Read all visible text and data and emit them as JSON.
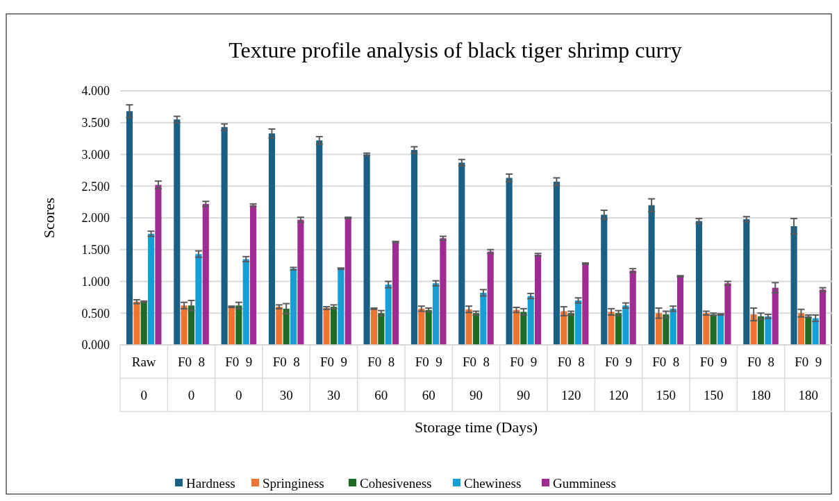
{
  "chart_data": {
    "type": "bar",
    "title": "Texture profile analysis of black tiger shrimp curry",
    "xlabel": "Storage time (Days)",
    "ylabel": "Scores",
    "categories": [
      "Raw\n0",
      "F0  8\n0",
      "F0  9\n0",
      "F0  8\n30",
      "F0  9\n30",
      "F0  8\n60",
      "F0  9\n60",
      "F0  8\n90",
      "F0  9\n90",
      "F0  8\n120",
      "F0  9\n120",
      "F0  8\n150",
      "F0  9\n150",
      "F0  8\n180",
      "F0  9\n180"
    ],
    "series": [
      {
        "name": "Hardness",
        "color": "#1a5f84",
        "values": [
          3.68,
          3.55,
          3.43,
          3.33,
          3.22,
          3.0,
          3.07,
          2.87,
          2.63,
          2.57,
          2.05,
          2.2,
          1.95,
          1.98,
          1.87
        ],
        "errors": [
          0.1,
          0.05,
          0.05,
          0.07,
          0.06,
          0.02,
          0.05,
          0.05,
          0.06,
          0.06,
          0.07,
          0.1,
          0.04,
          0.04,
          0.12
        ]
      },
      {
        "name": "Springiness",
        "color": "#ed7531",
        "values": [
          0.68,
          0.62,
          0.6,
          0.6,
          0.58,
          0.57,
          0.57,
          0.56,
          0.55,
          0.53,
          0.52,
          0.5,
          0.5,
          0.48,
          0.5
        ],
        "errors": [
          0.03,
          0.05,
          0.01,
          0.03,
          0.02,
          0.01,
          0.04,
          0.05,
          0.04,
          0.07,
          0.05,
          0.08,
          0.03,
          0.1,
          0.06
        ]
      },
      {
        "name": "Cohesiveness",
        "color": "#1d6b25",
        "values": [
          0.68,
          0.62,
          0.62,
          0.57,
          0.6,
          0.5,
          0.55,
          0.5,
          0.52,
          0.5,
          0.5,
          0.48,
          0.48,
          0.45,
          0.45
        ],
        "errors": [
          0.01,
          0.08,
          0.05,
          0.08,
          0.03,
          0.04,
          0.03,
          0.03,
          0.05,
          0.03,
          0.04,
          0.05,
          0.02,
          0.05,
          0.02
        ]
      },
      {
        "name": "Chewiness",
        "color": "#159fd6",
        "values": [
          1.75,
          1.43,
          1.35,
          1.2,
          1.2,
          0.95,
          0.97,
          0.82,
          0.77,
          0.7,
          0.62,
          0.57,
          0.48,
          0.45,
          0.42
        ],
        "errors": [
          0.04,
          0.05,
          0.04,
          0.02,
          0.01,
          0.05,
          0.04,
          0.05,
          0.04,
          0.04,
          0.04,
          0.04,
          0.01,
          0.03,
          0.05
        ]
      },
      {
        "name": "Gumminess",
        "color": "#a02c93",
        "values": [
          2.52,
          2.22,
          2.2,
          1.97,
          2.0,
          1.62,
          1.68,
          1.47,
          1.42,
          1.28,
          1.17,
          1.08,
          0.97,
          0.9,
          0.87
        ],
        "errors": [
          0.06,
          0.04,
          0.02,
          0.04,
          0.01,
          0.01,
          0.03,
          0.03,
          0.02,
          0.01,
          0.03,
          0.01,
          0.03,
          0.08,
          0.03
        ]
      }
    ],
    "ylim": [
      0,
      4
    ],
    "yticks": [
      {
        "value": 0,
        "label": "0.000"
      },
      {
        "value": 0.5,
        "label": "0.500"
      },
      {
        "value": 1,
        "label": "1.000"
      },
      {
        "value": 1.5,
        "label": "1.500"
      },
      {
        "value": 2,
        "label": "2.000"
      },
      {
        "value": 2.5,
        "label": "2.500"
      },
      {
        "value": 3,
        "label": "3.000"
      },
      {
        "value": 3.5,
        "label": "3.500"
      },
      {
        "value": 4,
        "label": "4.000"
      }
    ],
    "grid": "y",
    "legend": "bottom"
  }
}
